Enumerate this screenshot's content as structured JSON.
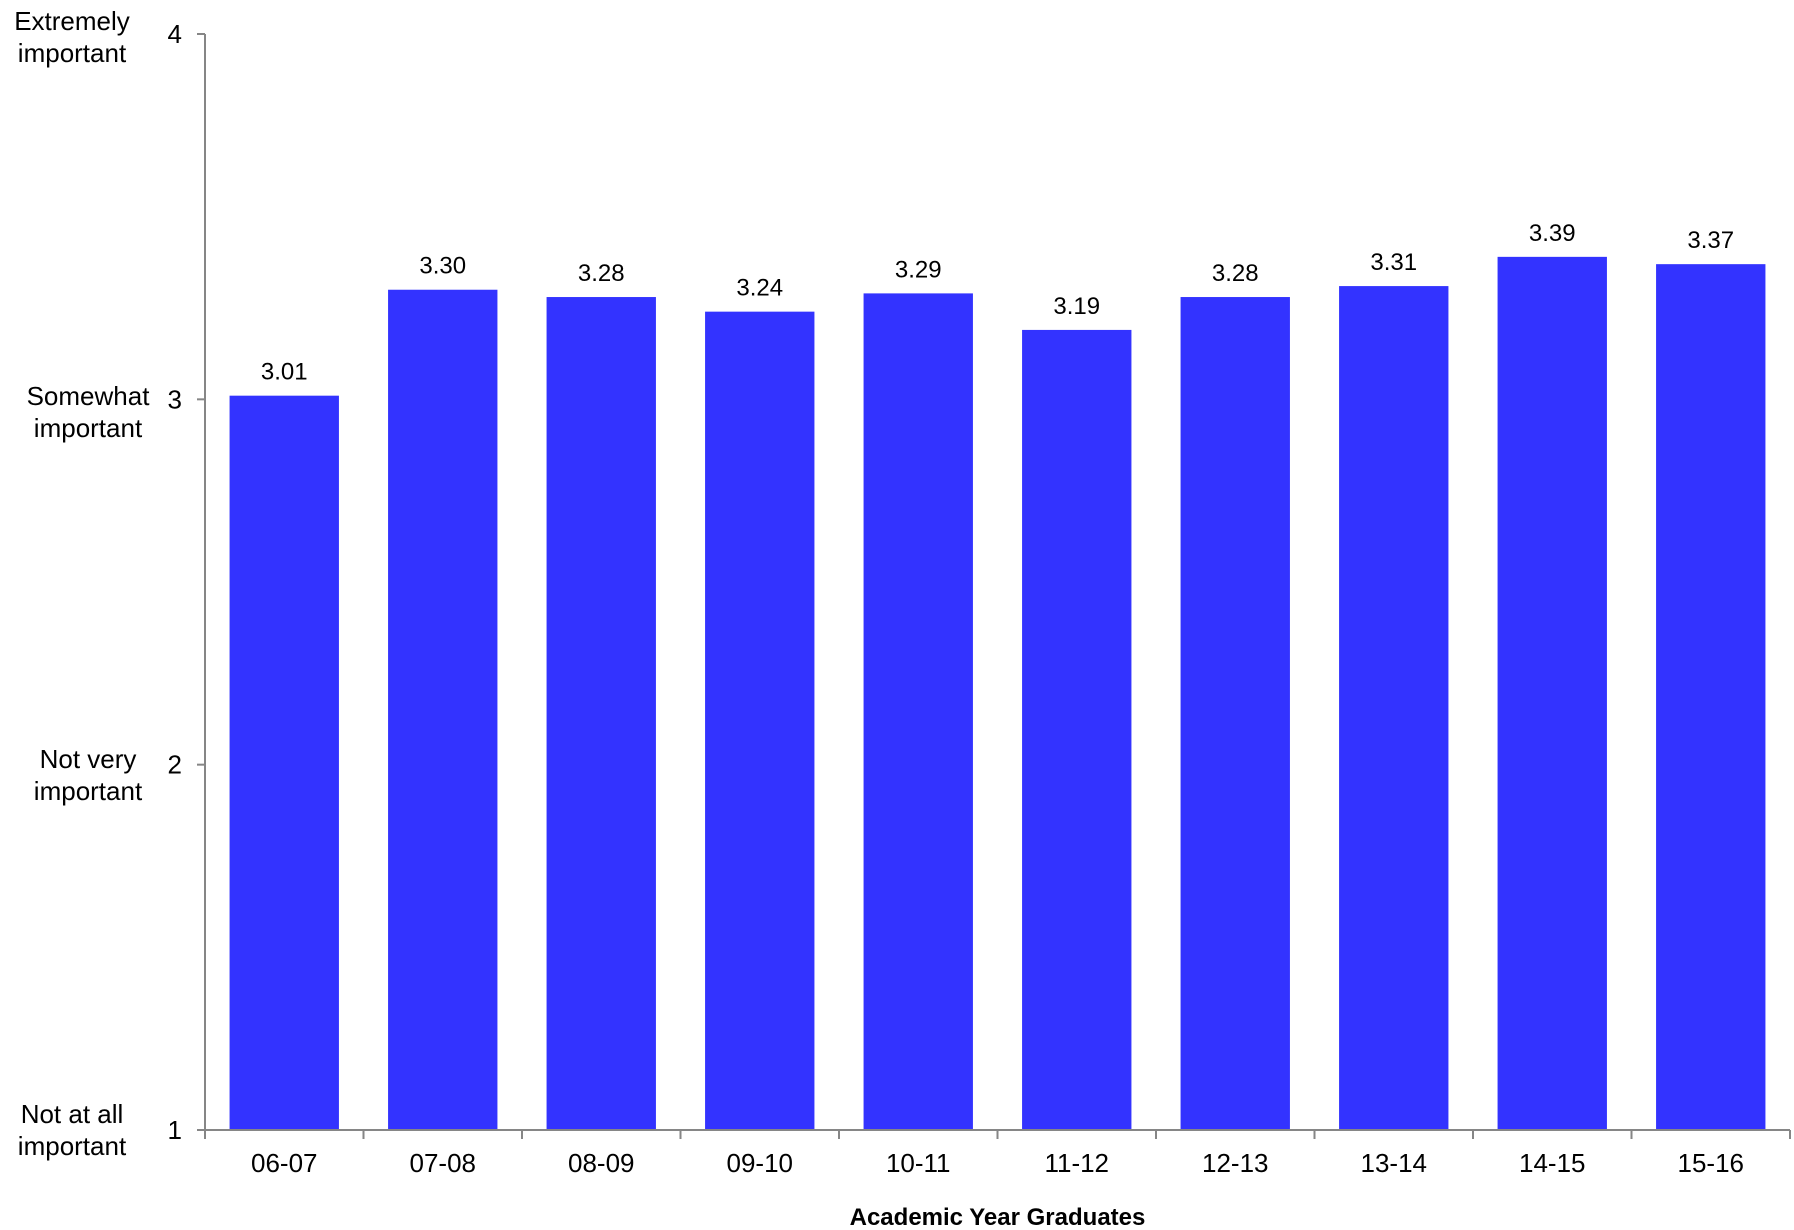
{
  "chart_data": {
    "type": "bar",
    "title": "",
    "xlabel": "Academic Year Graduates",
    "ylabel": "",
    "ylim": [
      1,
      4
    ],
    "y_ticks": [
      1,
      2,
      3,
      4
    ],
    "y_tick_text_labels": [
      {
        "value": 4,
        "label": "Extremely important"
      },
      {
        "value": 3,
        "label": "Somewhat important"
      },
      {
        "value": 2,
        "label": "Not very important"
      },
      {
        "value": 1,
        "label": "Not at all important"
      }
    ],
    "categories": [
      "06-07",
      "07-08",
      "08-09",
      "09-10",
      "10-11",
      "11-12",
      "12-13",
      "13-14",
      "14-15",
      "15-16"
    ],
    "values": [
      3.01,
      3.3,
      3.28,
      3.24,
      3.29,
      3.19,
      3.28,
      3.31,
      3.39,
      3.37
    ],
    "data_labels": [
      "3.01",
      "3.30",
      "3.28",
      "3.24",
      "3.29",
      "3.19",
      "3.28",
      "3.31",
      "3.39",
      "3.37"
    ],
    "bar_color": "#3333FF",
    "axis_color": "#868686",
    "grid": false,
    "legend": "none"
  }
}
